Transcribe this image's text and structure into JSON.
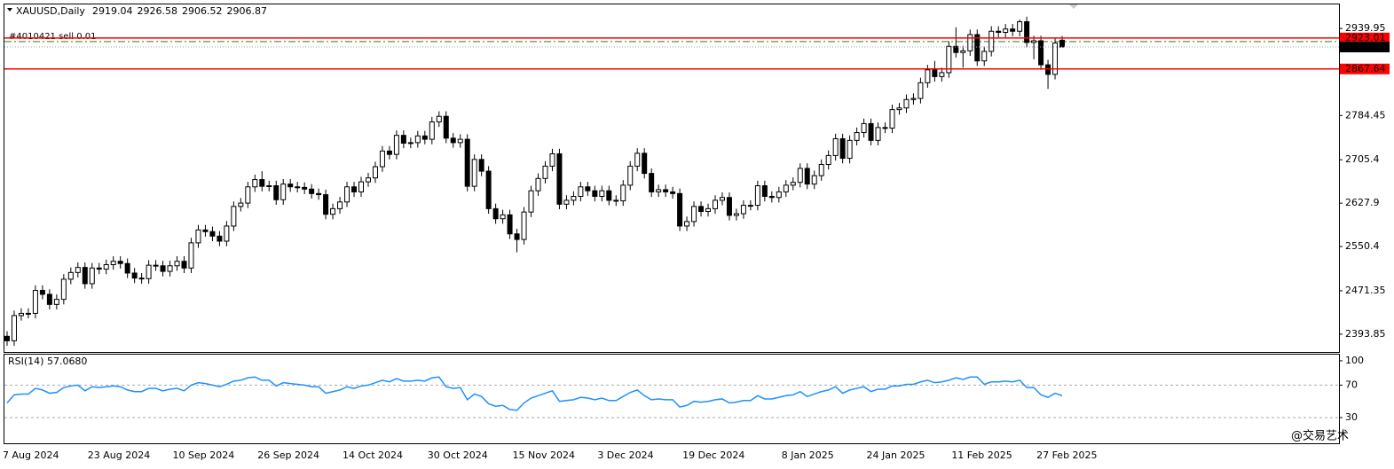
{
  "chart_data": [
    {
      "type": "candlestick",
      "symbol": "XAUUSD,Daily",
      "ohlc": [
        2919.04,
        2926.58,
        2906.52,
        2906.87
      ],
      "categories": [
        "7 Aug 2024",
        null,
        null,
        null,
        null,
        null,
        null,
        null,
        null,
        null,
        null,
        null,
        "23 Aug 2024",
        null,
        null,
        null,
        null,
        null,
        null,
        null,
        null,
        null,
        null,
        null,
        "10 Sep 2024",
        null,
        null,
        null,
        null,
        null,
        null,
        null,
        null,
        null,
        null,
        null,
        "26 Sep 2024",
        null,
        null,
        null,
        null,
        null,
        null,
        null,
        null,
        null,
        null,
        null,
        "14 Oct 2024",
        null,
        null,
        null,
        null,
        null,
        null,
        null,
        null,
        null,
        null,
        null,
        "30 Oct 2024",
        null,
        null,
        null,
        null,
        null,
        null,
        null,
        null,
        null,
        null,
        null,
        "15 Nov 2024",
        null,
        null,
        null,
        null,
        null,
        null,
        null,
        null,
        null,
        null,
        null,
        "3 Dec 2024",
        null,
        null,
        null,
        null,
        null,
        null,
        null,
        null,
        null,
        null,
        null,
        "19 Dec 2024",
        null,
        null,
        null,
        null,
        null,
        null,
        null,
        null,
        null,
        null,
        null,
        null,
        null,
        "8 Jan 2025",
        null,
        null,
        null,
        null,
        null,
        null,
        null,
        null,
        null,
        null,
        null,
        "24 Jan 2025",
        null,
        null,
        null,
        null,
        null,
        null,
        null,
        null,
        null,
        null,
        null,
        "11 Feb 2025",
        null,
        null,
        null,
        null,
        null,
        null,
        null,
        null,
        null,
        null,
        null,
        "27 Feb 2025",
        null,
        null,
        null
      ],
      "open": [
        2390,
        2382,
        2427,
        2431,
        2431,
        2472,
        2465,
        2447,
        2456,
        2492,
        2504,
        2513,
        2484,
        2512,
        2510,
        2518,
        2524,
        2520,
        2503,
        2494,
        2493,
        2517,
        2516,
        2506,
        2516,
        2524,
        2512,
        2557,
        2580,
        2577,
        2569,
        2560,
        2587,
        2622,
        2628,
        2657,
        2670,
        2658,
        2659,
        2634,
        2662,
        2657,
        2656,
        2653,
        2645,
        2643,
        2608,
        2618,
        2630,
        2657,
        2648,
        2666,
        2673,
        2693,
        2721,
        2715,
        2749,
        2735,
        2736,
        2748,
        2742,
        2773,
        2783,
        2744,
        2736,
        2742,
        2658,
        2706,
        2685,
        2618,
        2600,
        2607,
        2573,
        2563,
        2612,
        2650,
        2672,
        2694,
        2716,
        2626,
        2633,
        2640,
        2657,
        2650,
        2640,
        2650,
        2633,
        2632,
        2660,
        2694,
        2717,
        2681,
        2648,
        2652,
        2648,
        2645,
        2587,
        2595,
        2622,
        2613,
        2618,
        2633,
        2638,
        2606,
        2609,
        2624,
        2624,
        2659,
        2640,
        2638,
        2648,
        2660,
        2665,
        2690,
        2662,
        2677,
        2697,
        2713,
        2743,
        2708,
        2740,
        2754,
        2770,
        2740,
        2763,
        2762,
        2795,
        2798,
        2813,
        2815,
        2843,
        2866,
        2854,
        2861,
        2908,
        2897,
        2900,
        2929,
        2882,
        2899,
        2935,
        2933,
        2939,
        2935,
        2952,
        2915,
        2918,
        2875,
        2858,
        2919.04
      ],
      "high": [
        2399,
        2436,
        2440,
        2440,
        2481,
        2481,
        2474,
        2465,
        2501,
        2513,
        2522,
        2522,
        2521,
        2521,
        2527,
        2533,
        2533,
        2529,
        2512,
        2503,
        2526,
        2526,
        2525,
        2525,
        2533,
        2533,
        2566,
        2589,
        2589,
        2586,
        2578,
        2596,
        2631,
        2637,
        2666,
        2679,
        2685,
        2668,
        2668,
        2671,
        2671,
        2666,
        2665,
        2662,
        2654,
        2652,
        2627,
        2639,
        2666,
        2666,
        2675,
        2682,
        2702,
        2730,
        2730,
        2758,
        2758,
        2745,
        2757,
        2757,
        2782,
        2792,
        2792,
        2753,
        2751,
        2751,
        2715,
        2715,
        2694,
        2627,
        2616,
        2616,
        2582,
        2621,
        2659,
        2681,
        2703,
        2725,
        2725,
        2642,
        2649,
        2666,
        2666,
        2659,
        2659,
        2659,
        2642,
        2669,
        2703,
        2726,
        2726,
        2690,
        2661,
        2661,
        2657,
        2654,
        2604,
        2631,
        2631,
        2627,
        2642,
        2647,
        2647,
        2618,
        2633,
        2633,
        2668,
        2668,
        2649,
        2657,
        2669,
        2674,
        2699,
        2699,
        2686,
        2706,
        2722,
        2752,
        2752,
        2749,
        2763,
        2779,
        2779,
        2772,
        2772,
        2804,
        2807,
        2822,
        2824,
        2852,
        2875,
        2882,
        2870,
        2917,
        2942,
        2909,
        2938,
        2938,
        2908,
        2944,
        2944,
        2948,
        2948,
        2956,
        2961,
        2927,
        2927,
        2884,
        2923,
        2926.58
      ],
      "low": [
        2373,
        2373,
        2418,
        2422,
        2422,
        2456,
        2438,
        2438,
        2447,
        2483,
        2495,
        2475,
        2475,
        2501,
        2501,
        2509,
        2511,
        2494,
        2485,
        2484,
        2484,
        2507,
        2497,
        2497,
        2507,
        2503,
        2503,
        2548,
        2568,
        2560,
        2551,
        2551,
        2578,
        2613,
        2619,
        2648,
        2649,
        2649,
        2625,
        2625,
        2648,
        2647,
        2644,
        2636,
        2634,
        2599,
        2599,
        2609,
        2621,
        2639,
        2639,
        2657,
        2664,
        2684,
        2706,
        2706,
        2726,
        2726,
        2727,
        2733,
        2733,
        2764,
        2735,
        2727,
        2727,
        2649,
        2649,
        2676,
        2609,
        2591,
        2591,
        2564,
        2540,
        2554,
        2603,
        2641,
        2663,
        2685,
        2617,
        2617,
        2624,
        2631,
        2641,
        2631,
        2631,
        2624,
        2623,
        2623,
        2651,
        2685,
        2672,
        2639,
        2639,
        2639,
        2636,
        2578,
        2578,
        2586,
        2604,
        2604,
        2609,
        2624,
        2597,
        2597,
        2600,
        2615,
        2615,
        2631,
        2629,
        2629,
        2639,
        2651,
        2656,
        2653,
        2653,
        2668,
        2688,
        2704,
        2699,
        2699,
        2731,
        2745,
        2731,
        2731,
        2753,
        2753,
        2786,
        2789,
        2804,
        2806,
        2834,
        2845,
        2845,
        2852,
        2888,
        2870,
        2891,
        2873,
        2873,
        2890,
        2924,
        2924,
        2926,
        2926,
        2906,
        2885,
        2866,
        2832,
        2849,
        2906.52
      ],
      "close": [
        2382,
        2427,
        2431,
        2431,
        2472,
        2465,
        2447,
        2456,
        2492,
        2504,
        2513,
        2484,
        2512,
        2510,
        2518,
        2524,
        2520,
        2503,
        2494,
        2493,
        2517,
        2516,
        2506,
        2516,
        2524,
        2512,
        2557,
        2580,
        2577,
        2569,
        2560,
        2587,
        2622,
        2628,
        2657,
        2670,
        2658,
        2659,
        2634,
        2662,
        2657,
        2656,
        2653,
        2645,
        2643,
        2608,
        2618,
        2630,
        2657,
        2648,
        2666,
        2673,
        2693,
        2721,
        2715,
        2749,
        2735,
        2736,
        2748,
        2742,
        2773,
        2783,
        2744,
        2736,
        2742,
        2658,
        2706,
        2685,
        2618,
        2600,
        2607,
        2573,
        2563,
        2612,
        2650,
        2672,
        2694,
        2716,
        2626,
        2633,
        2640,
        2657,
        2650,
        2640,
        2650,
        2633,
        2632,
        2660,
        2694,
        2717,
        2681,
        2648,
        2652,
        2648,
        2645,
        2587,
        2595,
        2622,
        2613,
        2618,
        2633,
        2638,
        2606,
        2609,
        2624,
        2624,
        2659,
        2640,
        2638,
        2648,
        2660,
        2665,
        2690,
        2662,
        2677,
        2697,
        2713,
        2743,
        2708,
        2740,
        2754,
        2770,
        2740,
        2763,
        2762,
        2795,
        2798,
        2813,
        2815,
        2843,
        2866,
        2854,
        2861,
        2908,
        2897,
        2900,
        2929,
        2882,
        2899,
        2935,
        2933,
        2939,
        2935,
        2952,
        2915,
        2918,
        2875,
        2858,
        2914,
        2906.87
      ],
      "ylim": [
        2362,
        2984.5
      ],
      "yticks": [
        2393.85,
        2471.35,
        2550.4,
        2627.9,
        2705.4,
        2784.45,
        2939.95
      ],
      "lines": [
        {
          "value": 2923.01,
          "color": "#ff0000",
          "style": "solid"
        },
        {
          "value": 2867.64,
          "color": "#ff0000",
          "style": "solid"
        },
        {
          "value": 2906.87,
          "color": "#a0a0a0",
          "style": "dotted"
        }
      ],
      "order": {
        "label": "#4010421 sell 0.01",
        "color": "#1a8a1a"
      }
    },
    {
      "type": "line",
      "title": "RSI(14) 57.0680",
      "color": "#1e90ff",
      "values": [
        48,
        58,
        59,
        59,
        66,
        64,
        60,
        61,
        67,
        69,
        70,
        63,
        68,
        67,
        68,
        69,
        68,
        64,
        62,
        62,
        66,
        66,
        63,
        65,
        66,
        63,
        70,
        73,
        72,
        70,
        68,
        71,
        75,
        76,
        79,
        80,
        76,
        76,
        69,
        73,
        72,
        71,
        70,
        68,
        68,
        60,
        62,
        64,
        68,
        66,
        69,
        70,
        73,
        76,
        74,
        78,
        75,
        75,
        76,
        75,
        79,
        80,
        68,
        66,
        67,
        52,
        59,
        56,
        47,
        44,
        45,
        40,
        39,
        48,
        54,
        57,
        60,
        63,
        50,
        51,
        52,
        55,
        54,
        52,
        54,
        51,
        51,
        56,
        61,
        64,
        57,
        52,
        53,
        52,
        52,
        43,
        45,
        50,
        49,
        50,
        52,
        53,
        48,
        49,
        51,
        51,
        57,
        53,
        53,
        55,
        57,
        58,
        62,
        56,
        59,
        62,
        64,
        68,
        60,
        64,
        66,
        68,
        62,
        65,
        65,
        69,
        69,
        71,
        71,
        74,
        76,
        73,
        74,
        76,
        79,
        77,
        80,
        80,
        71,
        74,
        74,
        75,
        74,
        76,
        67,
        67,
        58,
        55,
        60,
        57.068
      ],
      "ylim": [
        -1.7,
        107.6
      ],
      "yticks": [
        30,
        70,
        100
      ],
      "levels": [
        30,
        70
      ]
    },
    {
      "watermark": "@交易艺术"
    }
  ]
}
